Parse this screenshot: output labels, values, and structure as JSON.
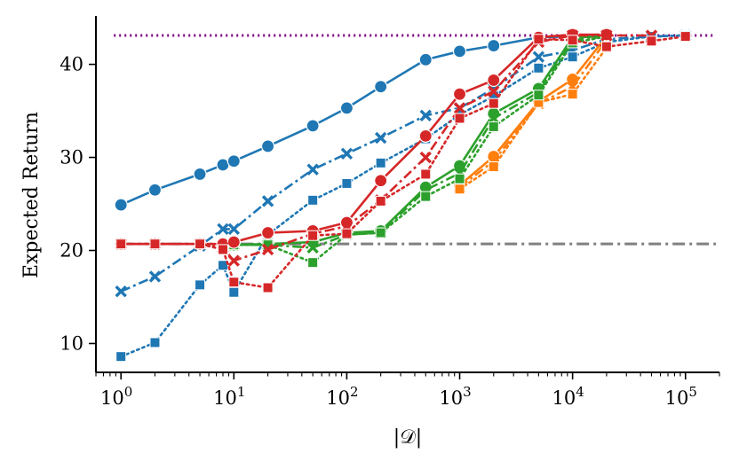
{
  "chart_data": {
    "type": "line",
    "title": "",
    "xlabel": "|𝒟|",
    "ylabel": "Expected Return",
    "xscale": "log",
    "xlim": [
      0.6,
      200000
    ],
    "ylim": [
      6.9,
      45.2
    ],
    "grid": false,
    "legend": "none",
    "xticks": [
      {
        "value": 1,
        "base": "10",
        "exp": "0"
      },
      {
        "value": 10,
        "base": "10",
        "exp": "1"
      },
      {
        "value": 100,
        "base": "10",
        "exp": "2"
      },
      {
        "value": 1000,
        "base": "10",
        "exp": "3"
      },
      {
        "value": 10000,
        "base": "10",
        "exp": "4"
      },
      {
        "value": 100000,
        "base": "10",
        "exp": "5"
      }
    ],
    "yticks": [
      {
        "value": 10,
        "label": "10"
      },
      {
        "value": 20,
        "label": "20"
      },
      {
        "value": 30,
        "label": "30"
      },
      {
        "value": 40,
        "label": "40"
      }
    ],
    "reference_lines": [
      {
        "name": "optimal",
        "value": 43.1,
        "color": "#800080",
        "style": "dotted"
      },
      {
        "name": "baseline",
        "value": 20.7,
        "color": "#808080",
        "style": "dashdot"
      }
    ],
    "series": [
      {
        "name": "blue-circle-solid",
        "color": "#1f77b4",
        "marker": "circle",
        "linestyle": "solid",
        "x": [
          1,
          2,
          5,
          8,
          10,
          20,
          50,
          100,
          200,
          500,
          1000,
          2000,
          5000,
          10000
        ],
        "y": [
          24.9,
          26.5,
          28.2,
          29.2,
          29.6,
          31.2,
          33.4,
          35.3,
          37.6,
          40.5,
          41.4,
          42.0,
          42.9,
          43.0
        ]
      },
      {
        "name": "blue-x-dashdot",
        "color": "#1f77b4",
        "marker": "x",
        "linestyle": "dashdot",
        "x": [
          1,
          2,
          5,
          8,
          10,
          20,
          50,
          100,
          200,
          500,
          1000,
          2000,
          5000,
          10000,
          20000,
          50000,
          100000
        ],
        "y": [
          15.6,
          17.2,
          20.5,
          22.3,
          22.3,
          25.3,
          28.7,
          30.4,
          32.1,
          34.5,
          35.3,
          37.4,
          40.8,
          41.5,
          42.7,
          43.0,
          43.1
        ]
      },
      {
        "name": "blue-square-dotted",
        "color": "#1f77b4",
        "marker": "square",
        "linestyle": "dotted",
        "x": [
          1,
          2,
          5,
          8,
          10,
          20,
          50,
          100,
          200,
          500,
          1000,
          2000,
          5000,
          10000,
          20000,
          50000,
          100000
        ],
        "y": [
          8.6,
          10.1,
          16.3,
          18.4,
          15.5,
          21.7,
          25.4,
          27.2,
          29.4,
          32.0,
          34.6,
          36.6,
          39.6,
          40.8,
          42.4,
          43.0,
          43.1
        ]
      },
      {
        "name": "orange-circle-solid",
        "color": "#ff7f0e",
        "marker": "circle",
        "linestyle": "solid",
        "x": [
          1000,
          2000,
          5000,
          10000,
          20000
        ],
        "y": [
          27.0,
          30.1,
          36.0,
          38.4,
          43.0
        ]
      },
      {
        "name": "orange-x-dashdot",
        "color": "#ff7f0e",
        "marker": "x",
        "linestyle": "dashdot",
        "x": [
          1000,
          2000,
          5000,
          10000,
          20000
        ],
        "y": [
          26.8,
          29.6,
          35.8,
          37.6,
          42.6
        ]
      },
      {
        "name": "orange-square-dotted",
        "color": "#ff7f0e",
        "marker": "square",
        "linestyle": "dotted",
        "x": [
          1000,
          2000,
          5000,
          10000,
          20000
        ],
        "y": [
          26.6,
          29.0,
          35.9,
          36.8,
          41.8
        ]
      },
      {
        "name": "green-circle-solid",
        "color": "#2ca02c",
        "marker": "circle",
        "linestyle": "solid",
        "x": [
          10,
          20,
          50,
          100,
          200,
          500,
          1000,
          2000,
          5000,
          10000,
          20000
        ],
        "y": [
          20.6,
          20.7,
          20.9,
          21.9,
          22.1,
          26.8,
          29.1,
          34.7,
          37.4,
          42.9,
          43.0
        ]
      },
      {
        "name": "green-x-dashdot",
        "color": "#2ca02c",
        "marker": "x",
        "linestyle": "dashdot",
        "x": [
          10,
          20,
          50,
          100,
          200,
          500,
          1000,
          2000,
          5000,
          10000,
          20000
        ],
        "y": [
          20.6,
          20.6,
          20.3,
          21.7,
          21.9,
          26.5,
          28.3,
          34.2,
          37.0,
          42.6,
          43.0
        ]
      },
      {
        "name": "green-square-dotted",
        "color": "#2ca02c",
        "marker": "square",
        "linestyle": "dotted",
        "x": [
          10,
          20,
          50,
          100,
          200,
          500,
          1000,
          2000,
          5000,
          10000,
          20000
        ],
        "y": [
          20.6,
          20.6,
          18.7,
          21.7,
          21.9,
          25.8,
          27.7,
          33.3,
          36.7,
          42.3,
          43.0
        ]
      },
      {
        "name": "red-circle-solid",
        "color": "#d62728",
        "marker": "circle",
        "linestyle": "solid",
        "x": [
          1,
          2,
          5,
          8,
          10,
          20,
          50,
          100,
          200,
          500,
          1000,
          2000,
          5000,
          10000,
          20000
        ],
        "y": [
          20.7,
          20.7,
          20.7,
          20.7,
          20.9,
          21.9,
          22.1,
          23.0,
          27.5,
          32.3,
          36.8,
          38.3,
          42.9,
          43.2,
          43.2
        ]
      },
      {
        "name": "red-x-dashdot",
        "color": "#d62728",
        "marker": "x",
        "linestyle": "dashdot",
        "x": [
          1,
          2,
          5,
          8,
          10,
          20,
          50,
          100,
          200,
          500,
          1000,
          2000,
          5000,
          10000,
          20000,
          50000
        ],
        "y": [
          20.7,
          20.7,
          20.7,
          20.3,
          18.9,
          20.1,
          21.8,
          22.6,
          25.4,
          30.0,
          35.3,
          37.1,
          42.4,
          43.1,
          43.1,
          43.1
        ]
      },
      {
        "name": "red-square-dotted",
        "color": "#d62728",
        "marker": "square",
        "linestyle": "dotted",
        "x": [
          1,
          2,
          5,
          8,
          10,
          20,
          50,
          100,
          200,
          500,
          1000,
          2000,
          5000,
          10000,
          20000,
          50000,
          100000
        ],
        "y": [
          20.7,
          20.7,
          20.7,
          20.1,
          16.6,
          16.0,
          21.6,
          21.8,
          25.3,
          28.2,
          34.2,
          35.8,
          42.7,
          42.6,
          41.9,
          42.5,
          43.0
        ]
      }
    ]
  }
}
